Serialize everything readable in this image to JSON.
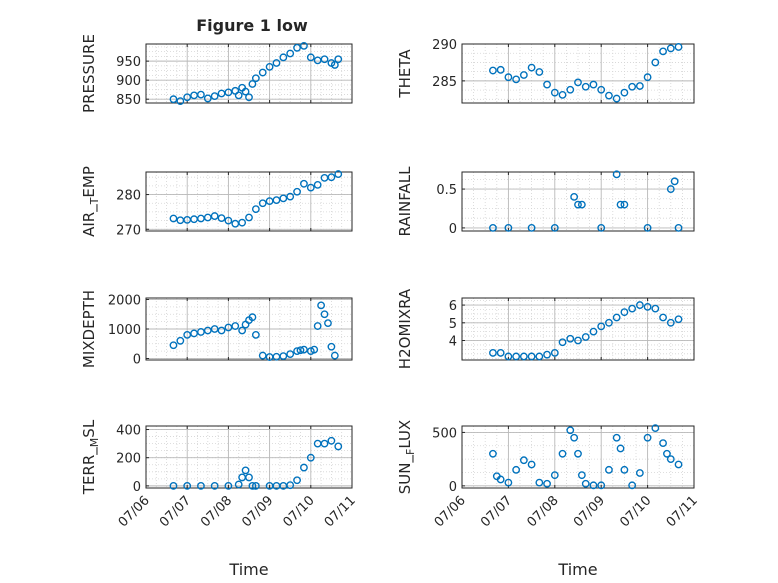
{
  "figure_title": "Figure 1 low",
  "colors": {
    "marker": "#0072BD",
    "axis": "#262626",
    "grid": "#b8b8b8",
    "background": "#ffffff"
  },
  "chart_data": [
    {
      "id": "pressure",
      "type": "scatter",
      "title": "Figure 1 low",
      "xlabel": "",
      "ylabel": "PRESSURE",
      "xlim": [
        "07/06",
        "07/11"
      ],
      "ylim": [
        840,
        995
      ],
      "yticks": [
        850,
        900,
        950
      ],
      "xtick_labels_visible": false,
      "grid": true,
      "x": [
        "2025-07-06T16:00",
        "2025-07-06T20:00",
        "2025-07-07T00:00",
        "2025-07-07T04:00",
        "2025-07-07T08:00",
        "2025-07-07T12:00",
        "2025-07-07T16:00",
        "2025-07-07T20:00",
        "2025-07-08T00:00",
        "2025-07-08T04:00",
        "2025-07-08T06:00",
        "2025-07-08T08:00",
        "2025-07-08T10:00",
        "2025-07-08T12:00",
        "2025-07-08T14:00",
        "2025-07-08T16:00",
        "2025-07-08T20:00",
        "2025-07-09T00:00",
        "2025-07-09T04:00",
        "2025-07-09T08:00",
        "2025-07-09T12:00",
        "2025-07-09T16:00",
        "2025-07-09T20:00",
        "2025-07-10T00:00",
        "2025-07-10T04:00",
        "2025-07-10T08:00",
        "2025-07-10T12:00",
        "2025-07-10T14:00",
        "2025-07-10T16:00"
      ],
      "y": [
        850,
        845,
        855,
        860,
        862,
        852,
        858,
        865,
        868,
        872,
        860,
        880,
        870,
        855,
        890,
        905,
        920,
        935,
        945,
        960,
        970,
        985,
        990,
        960,
        952,
        955,
        945,
        940,
        955
      ]
    },
    {
      "id": "theta",
      "type": "scatter",
      "xlabel": "",
      "ylabel": "THETA",
      "xlim": [
        "07/06",
        "07/11"
      ],
      "ylim": [
        282,
        290
      ],
      "yticks": [
        285,
        290
      ],
      "xtick_labels_visible": false,
      "grid": true,
      "x": [
        "2025-07-06T16:00",
        "2025-07-06T20:00",
        "2025-07-07T00:00",
        "2025-07-07T04:00",
        "2025-07-07T08:00",
        "2025-07-07T12:00",
        "2025-07-07T16:00",
        "2025-07-07T20:00",
        "2025-07-08T00:00",
        "2025-07-08T04:00",
        "2025-07-08T08:00",
        "2025-07-08T12:00",
        "2025-07-08T16:00",
        "2025-07-08T20:00",
        "2025-07-09T00:00",
        "2025-07-09T04:00",
        "2025-07-09T08:00",
        "2025-07-09T12:00",
        "2025-07-09T16:00",
        "2025-07-09T20:00",
        "2025-07-10T00:00",
        "2025-07-10T04:00",
        "2025-07-10T08:00",
        "2025-07-10T12:00",
        "2025-07-10T16:00"
      ],
      "y": [
        286.4,
        286.5,
        285.5,
        285.2,
        285.8,
        286.8,
        286.2,
        284.5,
        283.4,
        283.1,
        283.8,
        284.8,
        284.2,
        284.5,
        283.8,
        283.0,
        282.6,
        283.4,
        284.2,
        284.3,
        285.5,
        287.5,
        289.0,
        289.4,
        289.6
      ]
    },
    {
      "id": "air_temp",
      "type": "scatter",
      "xlabel": "",
      "ylabel": "AIR_TEMP",
      "xlim": [
        "07/06",
        "07/11"
      ],
      "ylim": [
        269.5,
        286.5
      ],
      "yticks": [
        270,
        280
      ],
      "xtick_labels_visible": false,
      "grid": true,
      "x": [
        "2025-07-06T16:00",
        "2025-07-06T20:00",
        "2025-07-07T00:00",
        "2025-07-07T04:00",
        "2025-07-07T08:00",
        "2025-07-07T12:00",
        "2025-07-07T16:00",
        "2025-07-07T20:00",
        "2025-07-08T00:00",
        "2025-07-08T04:00",
        "2025-07-08T08:00",
        "2025-07-08T12:00",
        "2025-07-08T16:00",
        "2025-07-08T20:00",
        "2025-07-09T00:00",
        "2025-07-09T04:00",
        "2025-07-09T08:00",
        "2025-07-09T12:00",
        "2025-07-09T16:00",
        "2025-07-09T20:00",
        "2025-07-10T00:00",
        "2025-07-10T04:00",
        "2025-07-10T08:00",
        "2025-07-10T12:00",
        "2025-07-10T16:00"
      ],
      "y": [
        273.1,
        272.6,
        272.7,
        272.9,
        273.1,
        273.4,
        273.8,
        273.2,
        272.5,
        271.6,
        271.9,
        273.4,
        275.8,
        277.5,
        278.1,
        278.4,
        278.9,
        279.4,
        280.8,
        283.1,
        282.0,
        282.8,
        284.8,
        285.0,
        285.9
      ]
    },
    {
      "id": "rainfall",
      "type": "scatter",
      "xlabel": "",
      "ylabel": "RAINFALL",
      "xlim": [
        "07/06",
        "07/11"
      ],
      "ylim": [
        -0.04,
        0.72
      ],
      "yticks": [
        0,
        0.5
      ],
      "xtick_labels_visible": false,
      "grid": true,
      "x": [
        "2025-07-06T16:00",
        "2025-07-07T00:00",
        "2025-07-07T12:00",
        "2025-07-08T00:00",
        "2025-07-08T10:00",
        "2025-07-08T12:00",
        "2025-07-08T14:00",
        "2025-07-09T00:00",
        "2025-07-09T08:00",
        "2025-07-09T10:00",
        "2025-07-09T12:00",
        "2025-07-10T00:00",
        "2025-07-10T12:00",
        "2025-07-10T14:00",
        "2025-07-10T16:00"
      ],
      "y": [
        0,
        0,
        0,
        0,
        0.4,
        0.3,
        0.3,
        0,
        0.69,
        0.3,
        0.3,
        0,
        0.5,
        0.6,
        0
      ]
    },
    {
      "id": "mixdepth",
      "type": "scatter",
      "xlabel": "",
      "ylabel": "MIXDEPTH",
      "xlim": [
        "07/06",
        "07/11"
      ],
      "ylim": [
        -50,
        2050
      ],
      "yticks": [
        0,
        1000,
        2000
      ],
      "xtick_labels_visible": false,
      "grid": true,
      "x": [
        "2025-07-06T16:00",
        "2025-07-06T20:00",
        "2025-07-07T00:00",
        "2025-07-07T04:00",
        "2025-07-07T08:00",
        "2025-07-07T12:00",
        "2025-07-07T16:00",
        "2025-07-07T20:00",
        "2025-07-08T00:00",
        "2025-07-08T04:00",
        "2025-07-08T08:00",
        "2025-07-08T10:00",
        "2025-07-08T12:00",
        "2025-07-08T14:00",
        "2025-07-08T16:00",
        "2025-07-08T20:00",
        "2025-07-09T00:00",
        "2025-07-09T04:00",
        "2025-07-09T08:00",
        "2025-07-09T12:00",
        "2025-07-09T16:00",
        "2025-07-09T18:00",
        "2025-07-09T20:00",
        "2025-07-10T00:00",
        "2025-07-10T02:00",
        "2025-07-10T04:00",
        "2025-07-10T06:00",
        "2025-07-10T08:00",
        "2025-07-10T10:00",
        "2025-07-10T12:00",
        "2025-07-10T14:00"
      ],
      "y": [
        450,
        600,
        800,
        850,
        900,
        950,
        1000,
        950,
        1050,
        1100,
        950,
        1150,
        1300,
        1400,
        800,
        100,
        50,
        60,
        80,
        150,
        250,
        280,
        300,
        250,
        300,
        1100,
        1800,
        1500,
        1200,
        400,
        100
      ]
    },
    {
      "id": "h2omixra",
      "type": "scatter",
      "xlabel": "",
      "ylabel": "H2OMIXRA",
      "xlim": [
        "07/06",
        "07/11"
      ],
      "ylim": [
        2.9,
        6.4
      ],
      "yticks": [
        4,
        5,
        6
      ],
      "xtick_labels_visible": false,
      "grid": true,
      "x": [
        "2025-07-06T16:00",
        "2025-07-06T20:00",
        "2025-07-07T00:00",
        "2025-07-07T04:00",
        "2025-07-07T08:00",
        "2025-07-07T12:00",
        "2025-07-07T16:00",
        "2025-07-07T20:00",
        "2025-07-08T00:00",
        "2025-07-08T04:00",
        "2025-07-08T08:00",
        "2025-07-08T12:00",
        "2025-07-08T16:00",
        "2025-07-08T20:00",
        "2025-07-09T00:00",
        "2025-07-09T04:00",
        "2025-07-09T08:00",
        "2025-07-09T12:00",
        "2025-07-09T16:00",
        "2025-07-09T20:00",
        "2025-07-10T00:00",
        "2025-07-10T04:00",
        "2025-07-10T08:00",
        "2025-07-10T12:00",
        "2025-07-10T16:00"
      ],
      "y": [
        3.3,
        3.3,
        3.1,
        3.1,
        3.1,
        3.1,
        3.1,
        3.2,
        3.3,
        3.9,
        4.1,
        4.0,
        4.2,
        4.5,
        4.8,
        5.0,
        5.3,
        5.6,
        5.8,
        6.0,
        5.9,
        5.8,
        5.3,
        5.0,
        5.2
      ]
    },
    {
      "id": "terr_msl",
      "type": "scatter",
      "xlabel": "Time",
      "ylabel": "TERR_MSL",
      "xlim": [
        "07/06",
        "07/11"
      ],
      "ylim": [
        -15,
        425
      ],
      "yticks": [
        0,
        200,
        400
      ],
      "xticks": [
        "07/06",
        "07/07",
        "07/08",
        "07/09",
        "07/10",
        "07/11"
      ],
      "grid": true,
      "x": [
        "2025-07-06T16:00",
        "2025-07-07T00:00",
        "2025-07-07T08:00",
        "2025-07-07T16:00",
        "2025-07-08T00:00",
        "2025-07-08T06:00",
        "2025-07-08T08:00",
        "2025-07-08T10:00",
        "2025-07-08T12:00",
        "2025-07-08T14:00",
        "2025-07-08T16:00",
        "2025-07-09T00:00",
        "2025-07-09T04:00",
        "2025-07-09T08:00",
        "2025-07-09T12:00",
        "2025-07-09T16:00",
        "2025-07-09T20:00",
        "2025-07-10T00:00",
        "2025-07-10T04:00",
        "2025-07-10T08:00",
        "2025-07-10T12:00",
        "2025-07-10T16:00"
      ],
      "y": [
        0,
        0,
        0,
        0,
        0,
        10,
        60,
        110,
        60,
        0,
        0,
        0,
        0,
        0,
        5,
        40,
        130,
        200,
        300,
        300,
        320,
        280
      ]
    },
    {
      "id": "sun_flux",
      "type": "scatter",
      "xlabel": "Time",
      "ylabel": "SUN_FLUX",
      "xlim": [
        "07/06",
        "07/11"
      ],
      "ylim": [
        -20,
        560
      ],
      "yticks": [
        0,
        500
      ],
      "xticks": [
        "07/06",
        "07/07",
        "07/08",
        "07/09",
        "07/10",
        "07/11"
      ],
      "grid": true,
      "x": [
        "2025-07-06T16:00",
        "2025-07-06T18:00",
        "2025-07-06T20:00",
        "2025-07-07T00:00",
        "2025-07-07T04:00",
        "2025-07-07T08:00",
        "2025-07-07T12:00",
        "2025-07-07T16:00",
        "2025-07-07T20:00",
        "2025-07-08T00:00",
        "2025-07-08T04:00",
        "2025-07-08T08:00",
        "2025-07-08T10:00",
        "2025-07-08T12:00",
        "2025-07-08T14:00",
        "2025-07-08T16:00",
        "2025-07-08T20:00",
        "2025-07-09T00:00",
        "2025-07-09T04:00",
        "2025-07-09T08:00",
        "2025-07-09T10:00",
        "2025-07-09T12:00",
        "2025-07-09T16:00",
        "2025-07-09T20:00",
        "2025-07-10T00:00",
        "2025-07-10T04:00",
        "2025-07-10T08:00",
        "2025-07-10T10:00",
        "2025-07-10T12:00",
        "2025-07-10T16:00"
      ],
      "y": [
        300,
        90,
        60,
        30,
        150,
        240,
        200,
        30,
        20,
        100,
        300,
        520,
        450,
        300,
        100,
        20,
        5,
        5,
        150,
        450,
        350,
        150,
        5,
        120,
        450,
        540,
        400,
        300,
        250,
        200
      ]
    }
  ]
}
